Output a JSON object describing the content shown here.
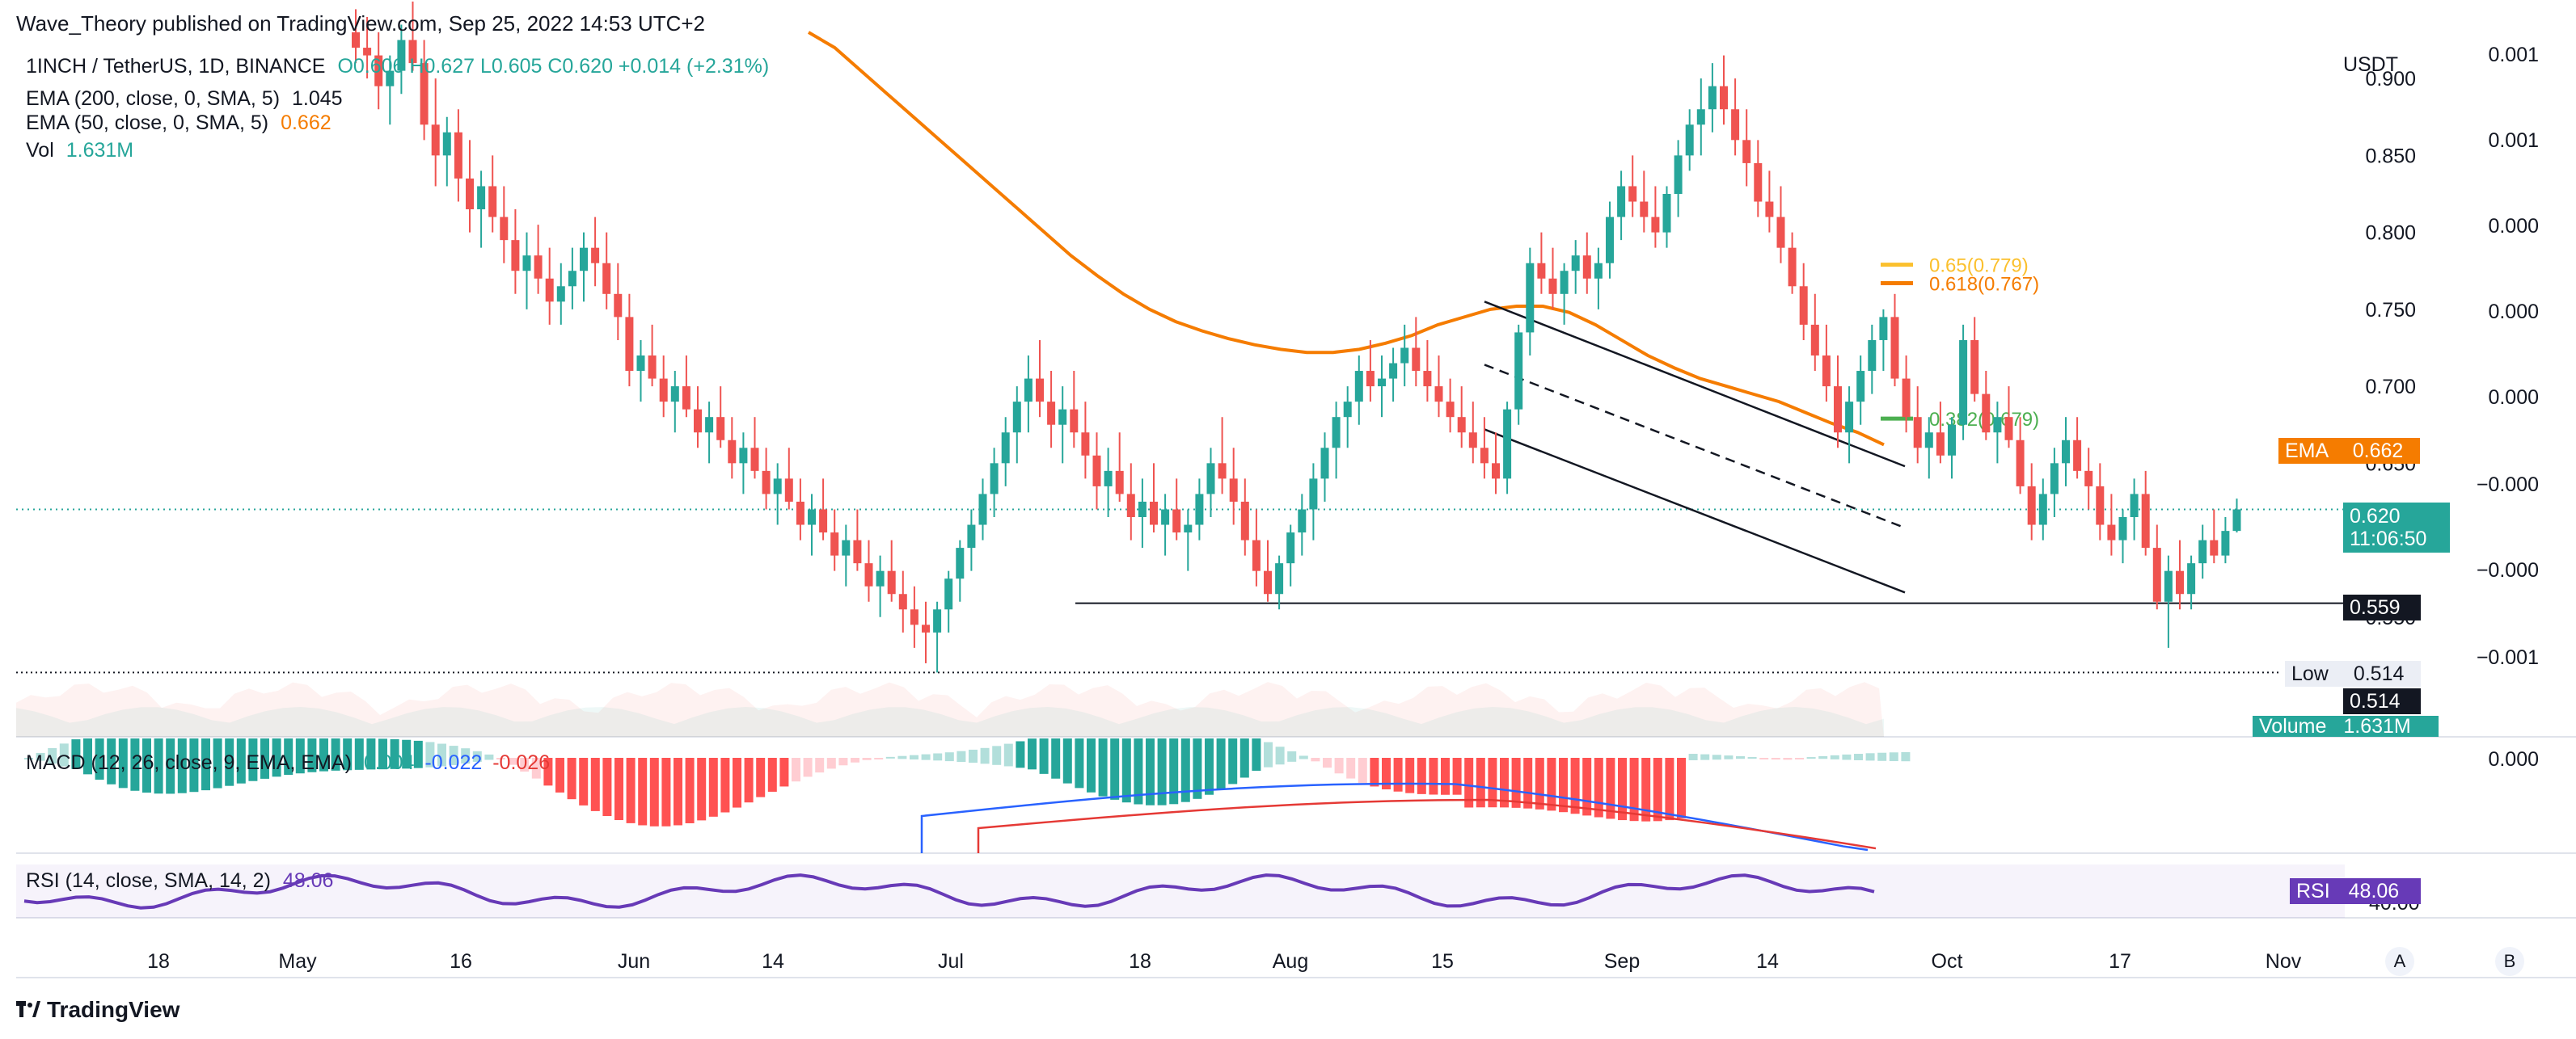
{
  "publisher": "Wave_Theory published on TradingView.com, Sep 25, 2022 14:53 UTC+2",
  "brand": "TradingView",
  "legend": {
    "symbol": "1INCH / TetherUS, 1D, BINANCE",
    "ohlc": "O0.606 H0.627 L0.605 C0.620 +0.014 (+2.31%)",
    "ema200_label": "EMA (200, close, 0, SMA, 5)",
    "ema200_value": "1.045",
    "ema50_label": "EMA (50, close, 0, SMA, 5)",
    "ema50_value": "0.662",
    "vol_label": "Vol",
    "vol_value": "1.631M",
    "macd_label": "MACD (12, 26, close, 9, EMA, EMA)",
    "macd_hist": "0.004",
    "macd_macd": "-0.022",
    "macd_signal": "-0.026",
    "rsi_label": "RSI (14, close, SMA, 14, 2)",
    "rsi_value": "48.06"
  },
  "axes": {
    "currency": "USDT",
    "price_ticks": [
      "0.900",
      "0.850",
      "0.800",
      "0.750",
      "0.700",
      "0.650",
      "0.550"
    ],
    "macd_ticks": [
      "0.001",
      "0.001",
      "0.000",
      "0.000",
      "0.000",
      "−0.000",
      "−0.000",
      "−0.001"
    ],
    "macd_pane_tick": "0.000",
    "rsi_tick": "40.00",
    "time_labels": [
      "18",
      "May",
      "16",
      "Jun",
      "14",
      "Jul",
      "18",
      "Aug",
      "15",
      "Sep",
      "14",
      "Oct",
      "17",
      "Nov"
    ],
    "btn_a": "A",
    "btn_b": "B"
  },
  "tags": {
    "ema_name": "EMA",
    "ema_value": "0.662",
    "price_value": "0.620",
    "price_countdown": "11:06:50",
    "support_value": "0.559",
    "low_name": "Low",
    "low_value": "0.514",
    "low_value2": "0.514",
    "volume_name": "Volume",
    "volume_value": "1.631M",
    "rsi_name": "RSI",
    "rsi_value": "48.06"
  },
  "fib": [
    {
      "label": "0.65(0.779)",
      "level": 0.779,
      "color": "#fbc02d"
    },
    {
      "label": "0.618(0.767)",
      "level": 0.767,
      "color": "#f57c00"
    },
    {
      "label": "0.382(0.679)",
      "level": 0.679,
      "color": "#4caf50"
    }
  ],
  "colors": {
    "up": "#26a69a",
    "down": "#ef5350",
    "ema50": "#f57c00",
    "rsi": "#673ab7",
    "macd_line": "#2962ff",
    "signal_line": "#e53935",
    "hist_up_strong": "#26a69a",
    "hist_up_weak": "#b2dfdb",
    "hist_down_strong": "#ff5252",
    "hist_down_weak": "#ffcdd2"
  },
  "chart_data": {
    "type": "candlestick",
    "title": "1INCH / TetherUS, 1D, BINANCE",
    "price_range": [
      0.51,
      0.93
    ],
    "support_level": 0.559,
    "low_level": 0.514,
    "last_price": 0.62,
    "ohlc_approx": [
      [
        0.93,
        0.945,
        0.91,
        0.92
      ],
      [
        0.92,
        0.94,
        0.9,
        0.915
      ],
      [
        0.915,
        0.93,
        0.88,
        0.895
      ],
      [
        0.895,
        0.915,
        0.87,
        0.905
      ],
      [
        0.905,
        0.935,
        0.89,
        0.925
      ],
      [
        0.925,
        0.95,
        0.905,
        0.91
      ],
      [
        0.91,
        0.925,
        0.86,
        0.87
      ],
      [
        0.87,
        0.9,
        0.83,
        0.85
      ],
      [
        0.85,
        0.875,
        0.83,
        0.865
      ],
      [
        0.865,
        0.88,
        0.82,
        0.835
      ],
      [
        0.835,
        0.86,
        0.8,
        0.815
      ],
      [
        0.815,
        0.84,
        0.79,
        0.83
      ],
      [
        0.83,
        0.85,
        0.8,
        0.81
      ],
      [
        0.81,
        0.83,
        0.78,
        0.795
      ],
      [
        0.795,
        0.815,
        0.76,
        0.775
      ],
      [
        0.775,
        0.8,
        0.75,
        0.785
      ],
      [
        0.785,
        0.805,
        0.76,
        0.77
      ],
      [
        0.77,
        0.79,
        0.74,
        0.755
      ],
      [
        0.755,
        0.78,
        0.74,
        0.765
      ],
      [
        0.765,
        0.79,
        0.75,
        0.775
      ],
      [
        0.775,
        0.8,
        0.755,
        0.79
      ],
      [
        0.79,
        0.81,
        0.765,
        0.78
      ],
      [
        0.78,
        0.8,
        0.75,
        0.76
      ],
      [
        0.76,
        0.78,
        0.73,
        0.745
      ],
      [
        0.745,
        0.76,
        0.7,
        0.71
      ],
      [
        0.71,
        0.73,
        0.69,
        0.72
      ],
      [
        0.72,
        0.74,
        0.7,
        0.705
      ],
      [
        0.705,
        0.72,
        0.68,
        0.69
      ],
      [
        0.69,
        0.71,
        0.67,
        0.7
      ],
      [
        0.7,
        0.72,
        0.68,
        0.685
      ],
      [
        0.685,
        0.7,
        0.66,
        0.67
      ],
      [
        0.67,
        0.69,
        0.65,
        0.68
      ],
      [
        0.68,
        0.7,
        0.66,
        0.665
      ],
      [
        0.665,
        0.68,
        0.64,
        0.65
      ],
      [
        0.65,
        0.67,
        0.63,
        0.66
      ],
      [
        0.66,
        0.68,
        0.64,
        0.645
      ],
      [
        0.645,
        0.66,
        0.62,
        0.63
      ],
      [
        0.63,
        0.65,
        0.61,
        0.64
      ],
      [
        0.64,
        0.66,
        0.62,
        0.625
      ],
      [
        0.625,
        0.64,
        0.6,
        0.61
      ],
      [
        0.61,
        0.63,
        0.59,
        0.62
      ],
      [
        0.62,
        0.64,
        0.6,
        0.605
      ],
      [
        0.605,
        0.62,
        0.58,
        0.59
      ],
      [
        0.59,
        0.61,
        0.57,
        0.6
      ],
      [
        0.6,
        0.62,
        0.58,
        0.585
      ],
      [
        0.585,
        0.6,
        0.56,
        0.57
      ],
      [
        0.57,
        0.59,
        0.55,
        0.58
      ],
      [
        0.58,
        0.6,
        0.56,
        0.565
      ],
      [
        0.565,
        0.58,
        0.54,
        0.555
      ],
      [
        0.555,
        0.57,
        0.53,
        0.545
      ],
      [
        0.545,
        0.56,
        0.52,
        0.54
      ],
      [
        0.54,
        0.56,
        0.514,
        0.555
      ],
      [
        0.555,
        0.58,
        0.54,
        0.575
      ],
      [
        0.575,
        0.6,
        0.56,
        0.595
      ],
      [
        0.595,
        0.62,
        0.58,
        0.61
      ],
      [
        0.61,
        0.64,
        0.6,
        0.63
      ],
      [
        0.63,
        0.66,
        0.615,
        0.65
      ],
      [
        0.65,
        0.68,
        0.635,
        0.67
      ],
      [
        0.67,
        0.7,
        0.65,
        0.69
      ],
      [
        0.69,
        0.72,
        0.67,
        0.705
      ],
      [
        0.705,
        0.73,
        0.68,
        0.69
      ],
      [
        0.69,
        0.71,
        0.66,
        0.675
      ],
      [
        0.675,
        0.7,
        0.65,
        0.685
      ],
      [
        0.685,
        0.71,
        0.66,
        0.67
      ],
      [
        0.67,
        0.69,
        0.64,
        0.655
      ],
      [
        0.655,
        0.67,
        0.62,
        0.635
      ],
      [
        0.635,
        0.66,
        0.615,
        0.645
      ],
      [
        0.645,
        0.67,
        0.625,
        0.63
      ],
      [
        0.63,
        0.65,
        0.6,
        0.615
      ],
      [
        0.615,
        0.64,
        0.595,
        0.625
      ],
      [
        0.625,
        0.65,
        0.605,
        0.61
      ],
      [
        0.61,
        0.63,
        0.59,
        0.62
      ],
      [
        0.62,
        0.64,
        0.6,
        0.605
      ],
      [
        0.605,
        0.62,
        0.58,
        0.61
      ],
      [
        0.61,
        0.64,
        0.6,
        0.63
      ],
      [
        0.63,
        0.66,
        0.615,
        0.65
      ],
      [
        0.65,
        0.68,
        0.63,
        0.64
      ],
      [
        0.64,
        0.66,
        0.61,
        0.625
      ],
      [
        0.625,
        0.64,
        0.59,
        0.6
      ],
      [
        0.6,
        0.62,
        0.57,
        0.58
      ],
      [
        0.58,
        0.6,
        0.56,
        0.565
      ],
      [
        0.565,
        0.59,
        0.555,
        0.585
      ],
      [
        0.585,
        0.61,
        0.57,
        0.605
      ],
      [
        0.605,
        0.63,
        0.59,
        0.62
      ],
      [
        0.62,
        0.65,
        0.6,
        0.64
      ],
      [
        0.64,
        0.67,
        0.625,
        0.66
      ],
      [
        0.66,
        0.69,
        0.64,
        0.68
      ],
      [
        0.68,
        0.7,
        0.66,
        0.69
      ],
      [
        0.69,
        0.72,
        0.675,
        0.71
      ],
      [
        0.71,
        0.73,
        0.69,
        0.7
      ],
      [
        0.7,
        0.72,
        0.68,
        0.705
      ],
      [
        0.705,
        0.725,
        0.69,
        0.715
      ],
      [
        0.715,
        0.74,
        0.7,
        0.725
      ],
      [
        0.725,
        0.745,
        0.7,
        0.71
      ],
      [
        0.71,
        0.73,
        0.69,
        0.7
      ],
      [
        0.7,
        0.72,
        0.68,
        0.69
      ],
      [
        0.69,
        0.705,
        0.67,
        0.68
      ],
      [
        0.68,
        0.7,
        0.66,
        0.67
      ],
      [
        0.67,
        0.69,
        0.65,
        0.66
      ],
      [
        0.66,
        0.68,
        0.64,
        0.65
      ],
      [
        0.65,
        0.67,
        0.63,
        0.64
      ],
      [
        0.64,
        0.69,
        0.63,
        0.685
      ],
      [
        0.685,
        0.74,
        0.675,
        0.735
      ],
      [
        0.735,
        0.79,
        0.72,
        0.78
      ],
      [
        0.78,
        0.8,
        0.76,
        0.77
      ],
      [
        0.77,
        0.79,
        0.75,
        0.76
      ],
      [
        0.76,
        0.78,
        0.74,
        0.775
      ],
      [
        0.775,
        0.795,
        0.76,
        0.785
      ],
      [
        0.785,
        0.8,
        0.76,
        0.77
      ],
      [
        0.77,
        0.79,
        0.75,
        0.78
      ],
      [
        0.78,
        0.82,
        0.77,
        0.81
      ],
      [
        0.81,
        0.84,
        0.795,
        0.83
      ],
      [
        0.83,
        0.85,
        0.81,
        0.82
      ],
      [
        0.82,
        0.84,
        0.8,
        0.81
      ],
      [
        0.81,
        0.83,
        0.79,
        0.8
      ],
      [
        0.8,
        0.83,
        0.79,
        0.825
      ],
      [
        0.825,
        0.86,
        0.81,
        0.85
      ],
      [
        0.85,
        0.88,
        0.84,
        0.87
      ],
      [
        0.87,
        0.9,
        0.85,
        0.88
      ],
      [
        0.88,
        0.91,
        0.865,
        0.895
      ],
      [
        0.895,
        0.915,
        0.87,
        0.88
      ],
      [
        0.88,
        0.9,
        0.85,
        0.86
      ],
      [
        0.86,
        0.88,
        0.83,
        0.845
      ],
      [
        0.845,
        0.86,
        0.81,
        0.82
      ],
      [
        0.82,
        0.84,
        0.8,
        0.81
      ],
      [
        0.81,
        0.83,
        0.78,
        0.79
      ],
      [
        0.79,
        0.8,
        0.76,
        0.765
      ],
      [
        0.765,
        0.78,
        0.73,
        0.74
      ],
      [
        0.74,
        0.76,
        0.71,
        0.72
      ],
      [
        0.72,
        0.74,
        0.69,
        0.7
      ],
      [
        0.7,
        0.72,
        0.66,
        0.67
      ],
      [
        0.67,
        0.7,
        0.65,
        0.69
      ],
      [
        0.69,
        0.72,
        0.675,
        0.71
      ],
      [
        0.71,
        0.74,
        0.695,
        0.73
      ],
      [
        0.73,
        0.75,
        0.71,
        0.745
      ],
      [
        0.745,
        0.76,
        0.7,
        0.705
      ],
      [
        0.705,
        0.72,
        0.67,
        0.68
      ],
      [
        0.68,
        0.7,
        0.65,
        0.66
      ],
      [
        0.66,
        0.68,
        0.64,
        0.67
      ],
      [
        0.67,
        0.69,
        0.65,
        0.655
      ],
      [
        0.655,
        0.68,
        0.64,
        0.675
      ],
      [
        0.675,
        0.74,
        0.665,
        0.73
      ],
      [
        0.73,
        0.745,
        0.69,
        0.695
      ],
      [
        0.695,
        0.71,
        0.665,
        0.67
      ],
      [
        0.67,
        0.69,
        0.65,
        0.68
      ],
      [
        0.68,
        0.7,
        0.66,
        0.665
      ],
      [
        0.665,
        0.68,
        0.63,
        0.635
      ],
      [
        0.635,
        0.65,
        0.6,
        0.61
      ],
      [
        0.61,
        0.64,
        0.6,
        0.63
      ],
      [
        0.63,
        0.66,
        0.615,
        0.65
      ],
      [
        0.65,
        0.68,
        0.635,
        0.665
      ],
      [
        0.665,
        0.68,
        0.64,
        0.645
      ],
      [
        0.645,
        0.66,
        0.62,
        0.635
      ],
      [
        0.635,
        0.65,
        0.6,
        0.61
      ],
      [
        0.61,
        0.63,
        0.59,
        0.6
      ],
      [
        0.6,
        0.62,
        0.585,
        0.615
      ],
      [
        0.615,
        0.64,
        0.6,
        0.63
      ],
      [
        0.63,
        0.645,
        0.59,
        0.595
      ],
      [
        0.595,
        0.61,
        0.555,
        0.56
      ],
      [
        0.56,
        0.59,
        0.53,
        0.58
      ],
      [
        0.58,
        0.6,
        0.555,
        0.565
      ],
      [
        0.565,
        0.59,
        0.555,
        0.585
      ],
      [
        0.585,
        0.61,
        0.575,
        0.6
      ],
      [
        0.6,
        0.62,
        0.585,
        0.59
      ],
      [
        0.59,
        0.615,
        0.585,
        0.606
      ],
      [
        0.606,
        0.627,
        0.605,
        0.62
      ]
    ],
    "ema50_approx": [
      0.93,
      0.92,
      0.905,
      0.89,
      0.875,
      0.86,
      0.845,
      0.83,
      0.815,
      0.8,
      0.785,
      0.772,
      0.76,
      0.75,
      0.742,
      0.736,
      0.731,
      0.727,
      0.724,
      0.722,
      0.722,
      0.724,
      0.728,
      0.733,
      0.74,
      0.745,
      0.75,
      0.752,
      0.752,
      0.748,
      0.74,
      0.73,
      0.72,
      0.712,
      0.705,
      0.7,
      0.695,
      0.69,
      0.683,
      0.676,
      0.67,
      0.662
    ],
    "macd": {
      "histogram": 0.004,
      "macd": -0.022,
      "signal": -0.026
    },
    "rsi": 48.06,
    "volume_last": "1.631M"
  }
}
